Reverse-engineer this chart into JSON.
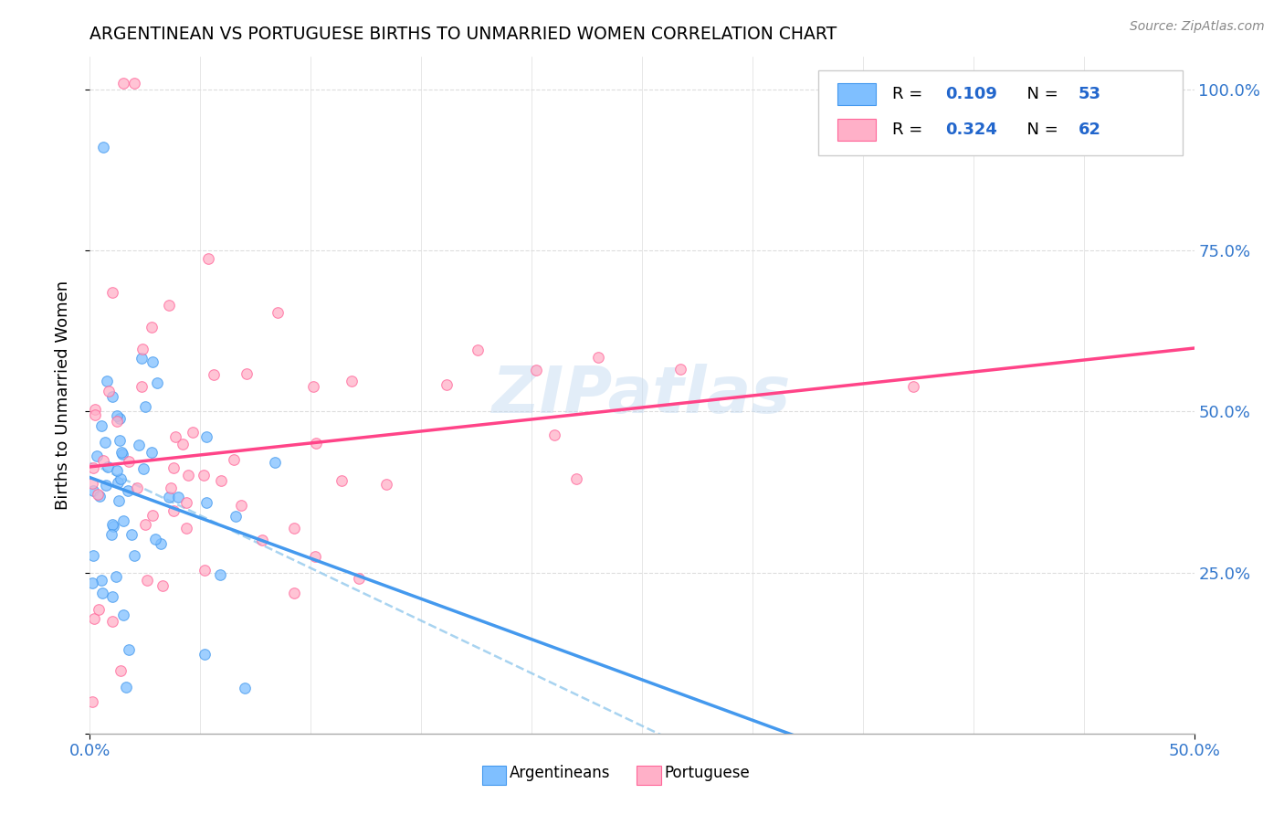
{
  "title": "ARGENTINEAN VS PORTUGUESE BIRTHS TO UNMARRIED WOMEN CORRELATION CHART",
  "source": "Source: ZipAtlas.com",
  "ylabel": "Births to Unmarried Women",
  "blue_scatter": "#7fbfff",
  "blue_edge": "#4499ee",
  "pink_scatter": "#ffb0c8",
  "pink_edge": "#ff6699",
  "trend_blue_solid": "#4499ee",
  "trend_pink_solid": "#ff4488",
  "trend_blue_dash": "#99ccee",
  "R_arg": 0.109,
  "N_arg": 53,
  "R_por": 0.324,
  "N_por": 62,
  "xmin": 0.0,
  "xmax": 0.5,
  "ymin": 0.0,
  "ymax": 1.05,
  "yticks": [
    0.25,
    0.5,
    0.75,
    1.0
  ],
  "yticklabels": [
    "25.0%",
    "50.0%",
    "75.0%",
    "100.0%"
  ],
  "xtick_labels": [
    "0.0%",
    "50.0%"
  ],
  "axis_label_color": "#3377cc",
  "grid_color": "#dddddd",
  "watermark": "ZIPatlas",
  "watermark_color": "#c0d8f0"
}
